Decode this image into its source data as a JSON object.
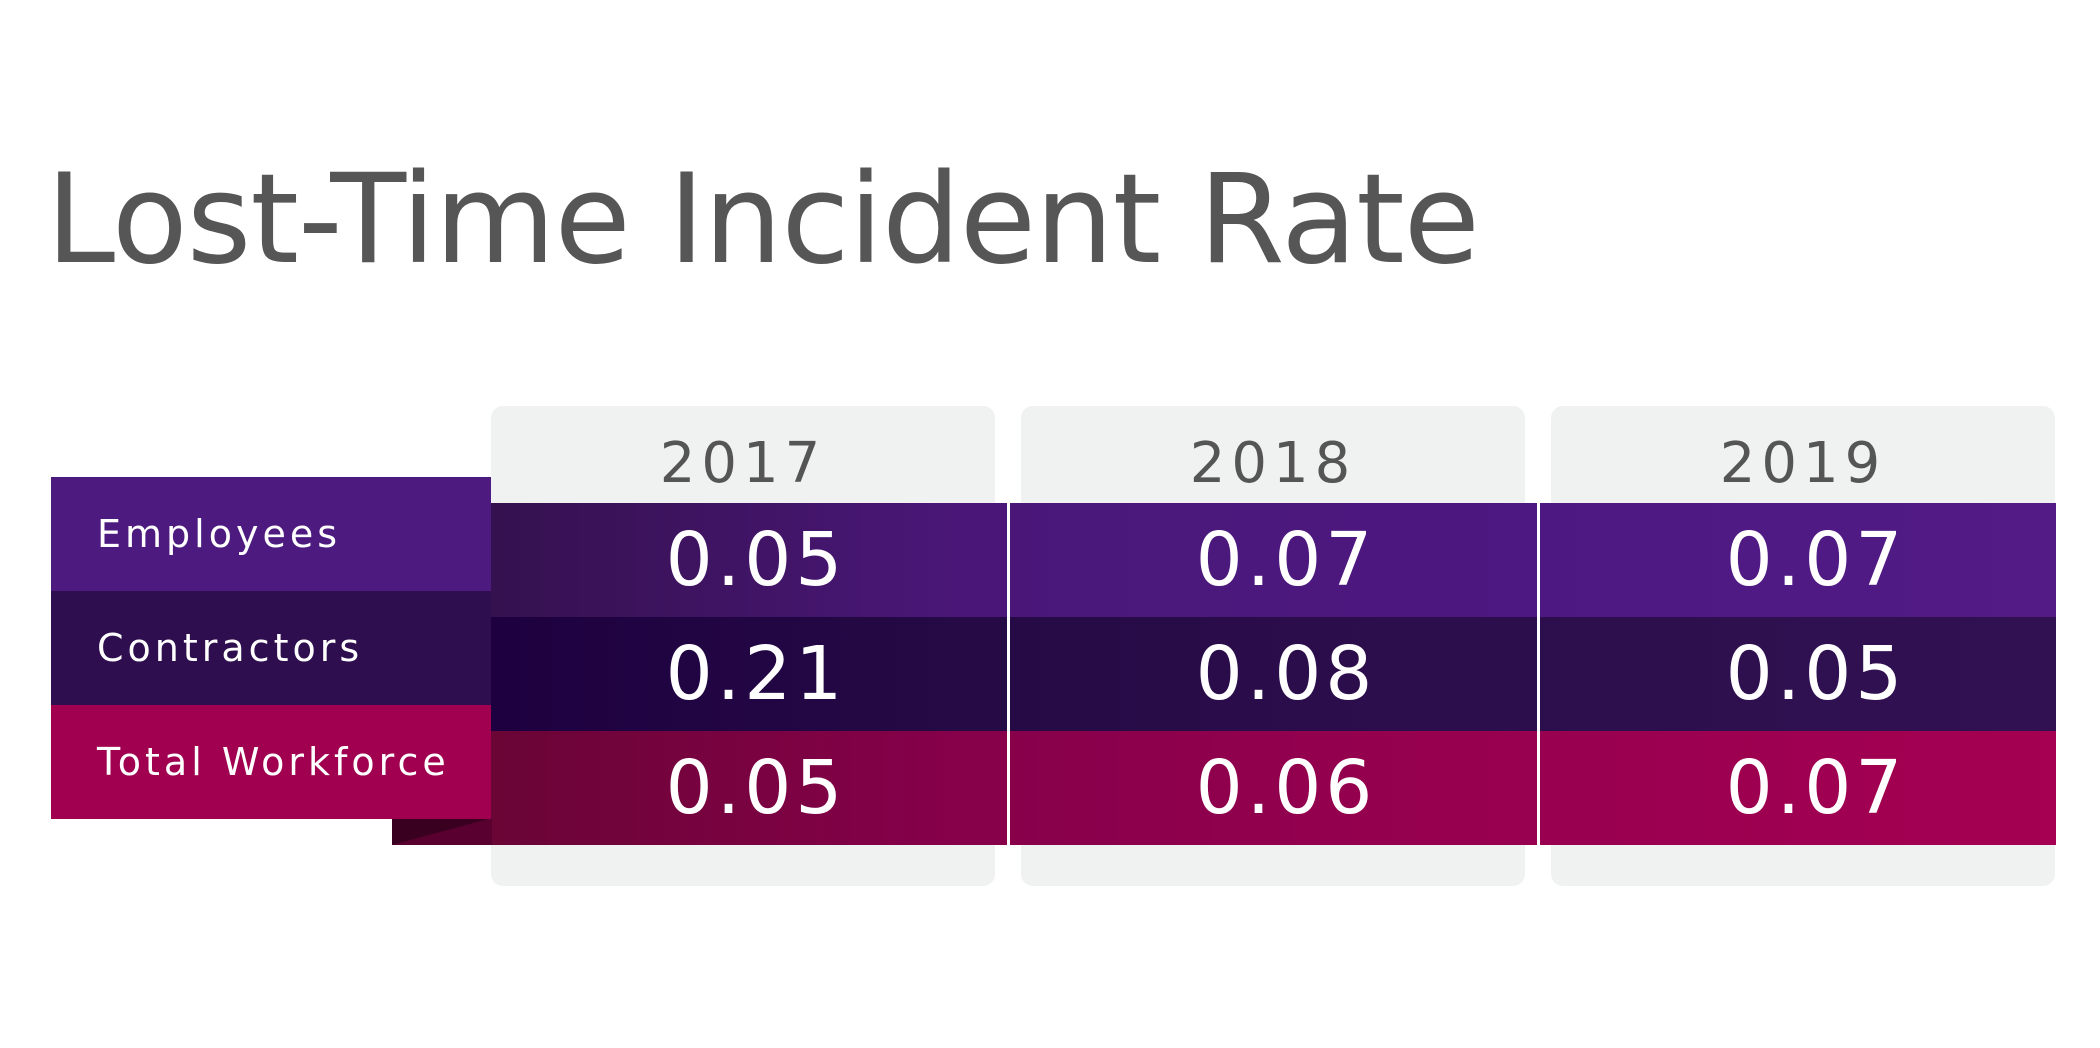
{
  "chart_data": {
    "type": "table",
    "title": "Lost-Time Incident Rate",
    "columns": [
      "2017",
      "2018",
      "2019"
    ],
    "rows": [
      {
        "label": "Employees",
        "values": [
          "0.05",
          "0.07",
          "0.07"
        ],
        "color": "#4d1a80"
      },
      {
        "label": "Contractors",
        "values": [
          "0.21",
          "0.08",
          "0.05"
        ],
        "color": "#2e0e4e"
      },
      {
        "label": "Total Workforce",
        "values": [
          "0.05",
          "0.06",
          "0.07"
        ],
        "color": "#a0004f"
      }
    ]
  }
}
